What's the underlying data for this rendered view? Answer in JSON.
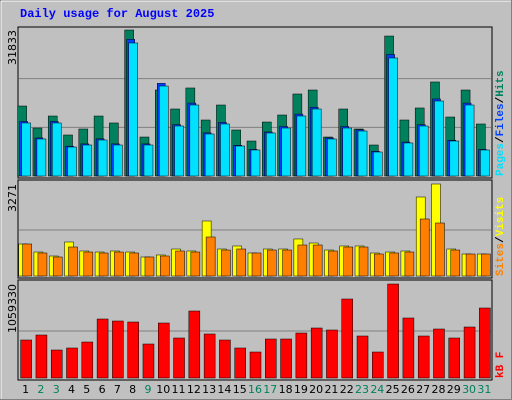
{
  "title": "Daily usage for August 2025",
  "legend_separator": "/",
  "chart_data": [
    {
      "type": "bar",
      "ylim": [
        0,
        31833
      ],
      "yticks": [
        31833
      ],
      "grid_divisions": 3,
      "series": [
        {
          "name": "Hits",
          "color": "#00805c",
          "values": [
            15260,
            10460,
            13080,
            8940,
            10250,
            13080,
            11560,
            31833,
            8500,
            18750,
            14610,
            19190,
            12210,
            15480,
            10030,
            7630,
            11770,
            13300,
            17880,
            18750,
            8500,
            14610,
            10250,
            6760,
            30520,
            12210,
            14830,
            20500,
            12860,
            18750,
            11340
          ]
        },
        {
          "name": "Files",
          "color": "#0040ff",
          "values": [
            11900,
            8300,
            11900,
            6500,
            7000,
            8100,
            7000,
            29800,
            7000,
            20200,
            11200,
            15900,
            9400,
            11700,
            6700,
            5800,
            9600,
            10800,
            13500,
            15000,
            8300,
            10800,
            10100,
            5400,
            26500,
            7400,
            11200,
            16800,
            7800,
            15900,
            5800
          ]
        },
        {
          "name": "Pages",
          "color": "#00e0ff",
          "values": [
            11560,
            8070,
            11560,
            6320,
            6760,
            7850,
            6760,
            29000,
            6760,
            19620,
            10900,
            15480,
            9160,
            11340,
            6540,
            5670,
            9380,
            10460,
            13080,
            14610,
            8070,
            10460,
            9810,
            5230,
            25730,
            7200,
            10900,
            16350,
            7630,
            15480,
            5670
          ]
        }
      ]
    },
    {
      "type": "bar",
      "ylim": [
        0,
        3271
      ],
      "yticks": [
        3271
      ],
      "grid_divisions": 2,
      "series": [
        {
          "name": "Visits",
          "color": "#ffff00",
          "values": [
            1138,
            853,
            711,
            1209,
            889,
            853,
            889,
            853,
            676,
            747,
            960,
            889,
            1956,
            960,
            1067,
            818,
            960,
            960,
            1316,
            1173,
            924,
            1067,
            1067,
            818,
            853,
            889,
            2809,
            3271,
            960,
            782,
            782
          ]
        },
        {
          "name": "Sites",
          "color": "#ff8000",
          "values": [
            1138,
            818,
            676,
            1031,
            853,
            818,
            853,
            818,
            676,
            711,
            889,
            853,
            1387,
            924,
            960,
            818,
            924,
            924,
            1102,
            1102,
            889,
            1031,
            1031,
            782,
            818,
            853,
            2027,
            1884,
            924,
            782,
            782
          ]
        }
      ]
    },
    {
      "type": "bar",
      "ylim": [
        0,
        1059330
      ],
      "yticks": [
        1059330
      ],
      "grid_divisions": 2,
      "categories": [
        "1",
        "2",
        "3",
        "4",
        "5",
        "6",
        "7",
        "8",
        "9",
        "10",
        "11",
        "12",
        "13",
        "14",
        "15",
        "16",
        "17",
        "18",
        "19",
        "20",
        "21",
        "22",
        "23",
        "24",
        "25",
        "26",
        "27",
        "28",
        "29",
        "30",
        "31"
      ],
      "category_colors": [
        "#000000",
        "#00805c",
        "#00805c",
        "#000000",
        "#000000",
        "#000000",
        "#000000",
        "#000000",
        "#00805c",
        "#000000",
        "#000000",
        "#000000",
        "#000000",
        "#000000",
        "#000000",
        "#00805c",
        "#00805c",
        "#000000",
        "#000000",
        "#000000",
        "#000000",
        "#000000",
        "#00805c",
        "#00805c",
        "#000000",
        "#000000",
        "#000000",
        "#000000",
        "#000000",
        "#00805c",
        "#00805c"
      ],
      "series": [
        {
          "name": "kB F",
          "color": "#ff0000",
          "values": [
            428250,
            484580,
            315550,
            338080,
            405700,
            664900,
            642360,
            631090,
            383160,
            619830,
            450780,
            755050,
            495860,
            428250,
            338080,
            293010,
            439510,
            439510,
            507130,
            563470,
            540930,
            890290,
            473320,
            293010,
            1059330,
            676170,
            473320,
            552200,
            450780,
            574740,
            788860
          ]
        }
      ]
    }
  ]
}
